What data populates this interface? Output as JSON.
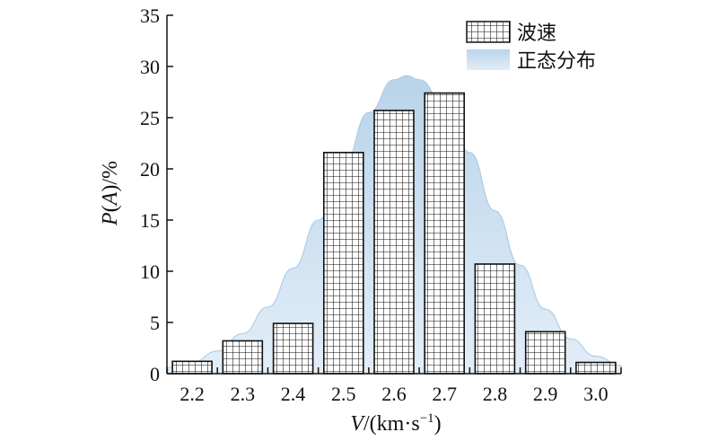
{
  "chart_data": {
    "type": "bar",
    "categories": [
      "2.2",
      "2.3",
      "2.4",
      "2.5",
      "2.6",
      "2.7",
      "2.8",
      "2.9",
      "3.0"
    ],
    "series": [
      {
        "name": "波速",
        "values": [
          1.2,
          3.2,
          4.9,
          21.6,
          25.7,
          27.4,
          10.7,
          4.1,
          1.1
        ]
      }
    ],
    "overlay": {
      "type": "area",
      "name": "正态分布",
      "x": [
        2.1,
        2.15,
        2.2,
        2.25,
        2.3,
        2.35,
        2.4,
        2.45,
        2.5,
        2.55,
        2.6,
        2.625,
        2.65,
        2.7,
        2.75,
        2.8,
        2.85,
        2.9,
        2.95,
        3.0,
        3.05,
        3.1
      ],
      "y": [
        0.3,
        0.6,
        1.1,
        2.2,
        3.9,
        6.5,
        10.3,
        15.0,
        20.4,
        25.5,
        28.7,
        29.1,
        28.7,
        26.3,
        21.6,
        15.9,
        10.6,
        6.3,
        3.4,
        1.7,
        0.8,
        0.3
      ]
    },
    "xlabel": {
      "italic": "V",
      "rest": "/(km·s",
      "sup": "−1",
      "close": ")"
    },
    "ylabel": {
      "italic": "P",
      "open": "(",
      "italic2": "A",
      "rest": ")/%"
    },
    "ylim": [
      0,
      35
    ],
    "yticks": [
      "0",
      "5",
      "10",
      "15",
      "20",
      "25",
      "30",
      "35"
    ],
    "grid": false,
    "legend_position": "top-right",
    "colors": {
      "bar_fill": "#ffffff",
      "bar_pattern": "#111111",
      "area_fill_top": "#b9d3ea",
      "area_fill_bottom": "#e2eef8",
      "area_stroke": "#a8c8e4",
      "axis": "#111111"
    }
  }
}
